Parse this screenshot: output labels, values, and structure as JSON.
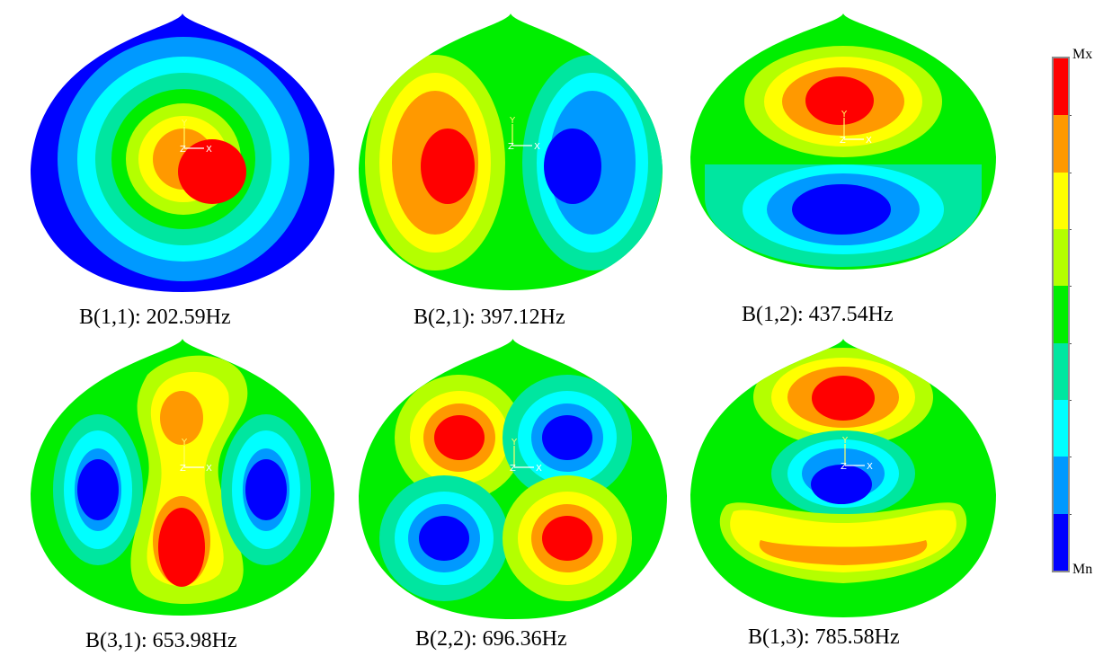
{
  "modes": [
    {
      "label": "B(1,1): 202.59Hz",
      "pattern": "b11"
    },
    {
      "label": "B(2,1): 397.12Hz",
      "pattern": "b21"
    },
    {
      "label": "B(1,2): 437.54Hz",
      "pattern": "b12"
    },
    {
      "label": "B(3,1): 653.98Hz",
      "pattern": "b31"
    },
    {
      "label": "B(2,2): 696.36Hz",
      "pattern": "b22"
    },
    {
      "label": "B(1,3): 785.58Hz",
      "pattern": "b13"
    }
  ],
  "triad": {
    "y": "Y",
    "z": "Z",
    "x": "X"
  },
  "legend": {
    "max_label": "Mx",
    "min_label": "Mn",
    "colors_top_to_bottom": [
      "#ff0000",
      "#ff9900",
      "#ffff00",
      "#b4ff00",
      "#00ee00",
      "#00e6a0",
      "#00ffff",
      "#0099ff",
      "#0000ff"
    ]
  }
}
